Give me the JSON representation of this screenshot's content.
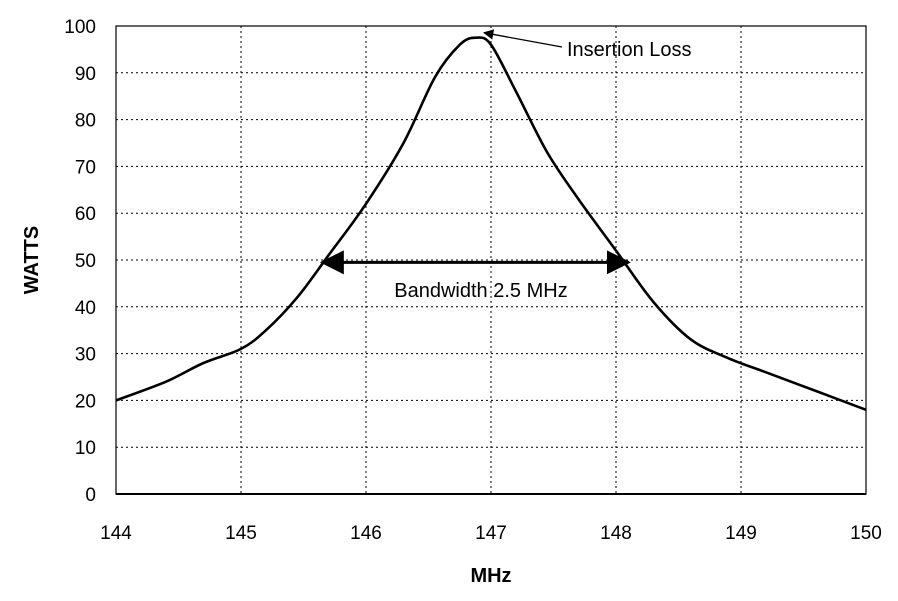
{
  "chart_data": {
    "type": "line",
    "xlabel": "MHz",
    "ylabel": "WATTS",
    "xlim": [
      144,
      150
    ],
    "ylim": [
      0,
      100
    ],
    "x_ticks": [
      144,
      145,
      146,
      147,
      148,
      149,
      150
    ],
    "y_ticks": [
      0,
      10,
      20,
      30,
      40,
      50,
      60,
      70,
      80,
      90,
      100
    ],
    "grid": true,
    "series": [
      {
        "color": "#000000",
        "x": [
          144.0,
          144.4,
          144.7,
          145.0,
          145.2,
          145.45,
          145.7,
          146.0,
          146.3,
          146.55,
          146.75,
          146.88,
          147.0,
          147.2,
          147.45,
          147.7,
          148.0,
          148.3,
          148.6,
          148.9,
          149.2,
          149.6,
          150.0
        ],
        "y": [
          20,
          24,
          28,
          31,
          35,
          42,
          51,
          62,
          75,
          89,
          96,
          97.5,
          96,
          86,
          73,
          63,
          52,
          41,
          33,
          29,
          26,
          22,
          18
        ]
      }
    ],
    "annotations": [
      {
        "text": "Insertion Loss",
        "target": [
          146.88,
          97.5
        ]
      },
      {
        "text": "Bandwidth 2.5 MHz",
        "from": [
          145.65,
          49.5
        ],
        "to": [
          148.1,
          49.5
        ]
      }
    ]
  }
}
